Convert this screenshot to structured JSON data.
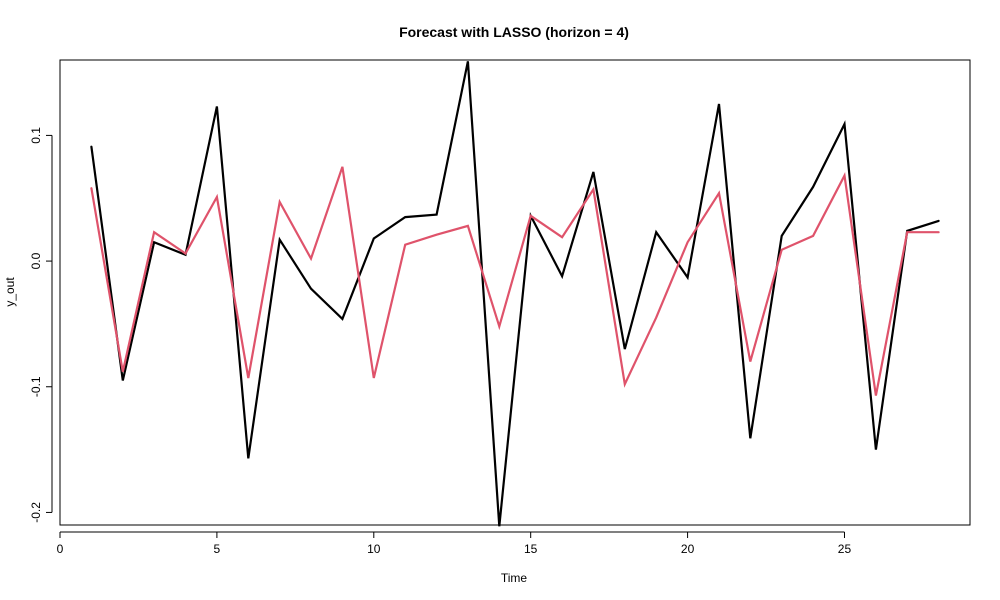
{
  "chart_data": {
    "type": "line",
    "title": "Forecast with LASSO (horizon = 4)",
    "xlabel": "Time",
    "ylabel": "y_out",
    "xlim": [
      0,
      29
    ],
    "ylim": [
      -0.21,
      0.16
    ],
    "xticks": [
      0,
      5,
      10,
      15,
      20,
      25
    ],
    "yticks": [
      -0.2,
      -0.1,
      0.0,
      0.1
    ],
    "ytick_labels": [
      "-0.2",
      "-0.1",
      "0.0",
      "0.1"
    ],
    "grid": false,
    "x": [
      1,
      2,
      3,
      4,
      5,
      6,
      7,
      8,
      9,
      10,
      11,
      12,
      13,
      14,
      15,
      16,
      17,
      18,
      19,
      20,
      21,
      22,
      23,
      24,
      25,
      26,
      27,
      28
    ],
    "series": [
      {
        "color": "#000000",
        "values": [
          0.091,
          -0.095,
          0.015,
          0.005,
          0.123,
          -0.157,
          0.017,
          -0.022,
          -0.046,
          0.018,
          0.035,
          0.037,
          0.159,
          -0.211,
          0.036,
          -0.012,
          0.071,
          -0.07,
          0.023,
          -0.013,
          0.125,
          -0.141,
          0.02,
          0.059,
          0.109,
          -0.15,
          0.024,
          0.032
        ]
      },
      {
        "color": "#DF536B",
        "values": [
          0.058,
          -0.088,
          0.023,
          0.006,
          0.051,
          -0.093,
          0.047,
          0.002,
          0.075,
          -0.093,
          0.013,
          0.021,
          0.028,
          -0.052,
          0.036,
          0.019,
          0.057,
          -0.098,
          -0.045,
          0.015,
          0.054,
          -0.08,
          0.009,
          0.02,
          0.068,
          -0.107,
          0.023,
          0.023
        ]
      }
    ]
  }
}
